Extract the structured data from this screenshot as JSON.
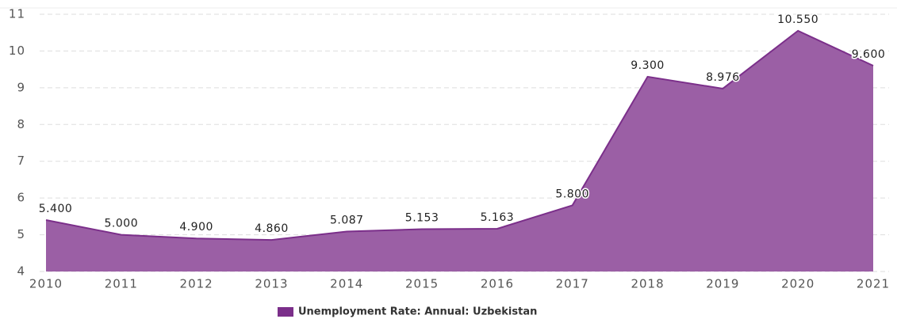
{
  "chart_data": {
    "type": "area",
    "x": [
      2010,
      2011,
      2012,
      2013,
      2014,
      2015,
      2016,
      2017,
      2018,
      2019,
      2020,
      2021
    ],
    "series": [
      {
        "name": "Unemployment Rate: Annual: Uzbekistan",
        "color": "#7b2f8a",
        "fill": "#9b5fa5",
        "values": [
          5.4,
          5.0,
          4.9,
          4.86,
          5.087,
          5.153,
          5.163,
          5.8,
          9.3,
          8.976,
          10.55,
          9.6
        ],
        "value_labels": [
          "5.400",
          "5.000",
          "4.900",
          "4.860",
          "5.087",
          "5.153",
          "5.163",
          "5.800",
          "9.300",
          "8.976",
          "10.550",
          "9.600"
        ]
      }
    ],
    "xlim": [
      2010,
      2021
    ],
    "xticks": [
      2010,
      2011,
      2012,
      2013,
      2014,
      2015,
      2016,
      2017,
      2018,
      2019,
      2020,
      2021
    ],
    "ylim": [
      4,
      11
    ],
    "yticks": [
      4,
      5,
      6,
      7,
      8,
      9,
      10,
      11
    ],
    "grid": true
  }
}
